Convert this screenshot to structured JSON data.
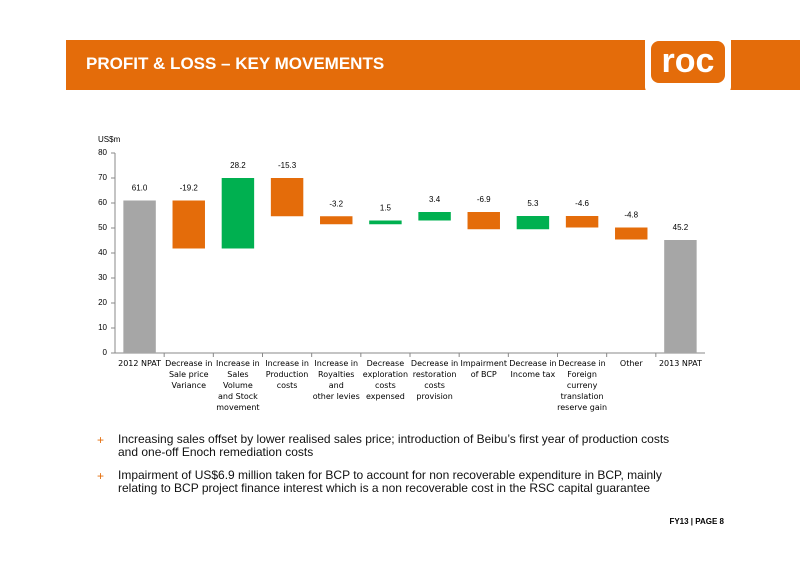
{
  "header": {
    "title": "PROFIT & LOSS – KEY MOVEMENTS",
    "logo": "roc"
  },
  "chart_data": {
    "type": "waterfall",
    "y_label": "US$m",
    "categories": [
      "2012 NPAT",
      "Decrease in\nSale price\nVariance",
      "Increase in\nSales Volume\nand Stock\nmovement",
      "Increase in\nProduction\ncosts",
      "Increase in\nRoyalties and\nother levies",
      "Decrease\nexploration\ncosts\nexpensed",
      "Decrease in\nrestoration\ncosts\nprovision",
      "Impairment\nof BCP",
      "Decrease in\nIncome tax",
      "Decrease in\nForeign\ncurreny\ntranslation\nreserve gain",
      "Other",
      "2013 NPAT"
    ],
    "measure": [
      "absolute",
      "relative",
      "relative",
      "relative",
      "relative",
      "relative",
      "relative",
      "relative",
      "relative",
      "relative",
      "relative",
      "absolute"
    ],
    "values": [
      61.0,
      -19.2,
      28.2,
      -15.3,
      -3.2,
      1.5,
      3.4,
      -6.9,
      5.3,
      -4.6,
      -4.8,
      45.2
    ],
    "value_labels": [
      "61.0",
      "-19.2",
      "28.2",
      "-15.3",
      "-3.2",
      "1.5",
      "3.4",
      "-6.9",
      "5.3",
      "-4.6",
      "-4.8",
      "45.2"
    ],
    "total_color": "#a6a6a6",
    "increase_color": "#00b050",
    "decrease_color": "#e46c0a",
    "ylim": [
      0,
      80
    ],
    "yticks": [
      0,
      10,
      20,
      30,
      40,
      50,
      60,
      70,
      80
    ],
    "grid": false
  },
  "bullets": [
    "Increasing sales offset by lower realised sales price; introduction of Beibu’s first year of production costs and one-off Enoch remediation costs",
    "Impairment of US$6.9 million taken for BCP to account for non recoverable expenditure in BCP, mainly relating to BCP project finance interest which is a non recoverable cost in the RSC capital guarantee"
  ],
  "bullet_marker": "+",
  "footer": "FY13 | PAGE 8"
}
